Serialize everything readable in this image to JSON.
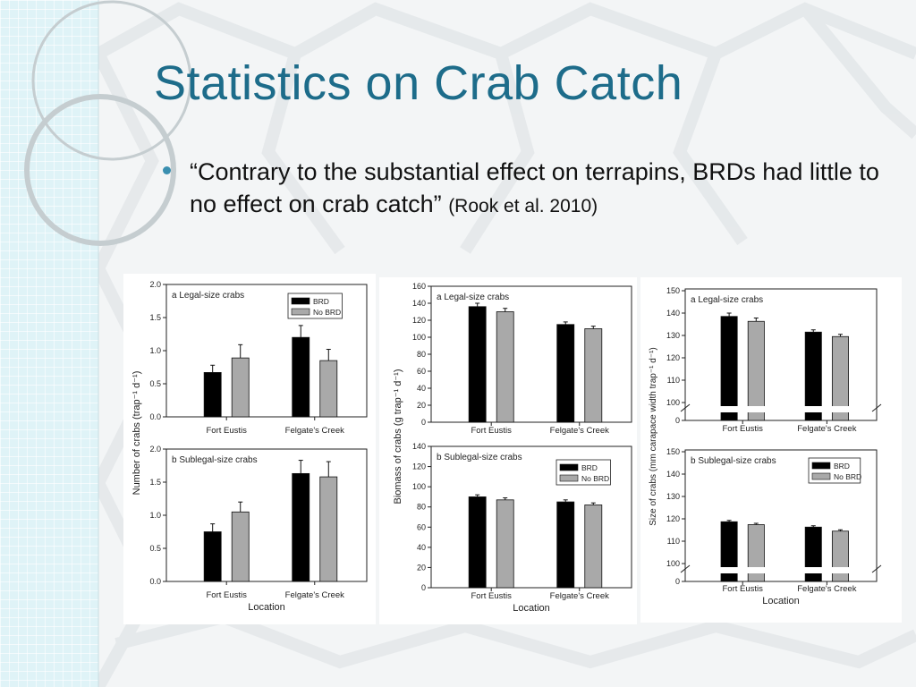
{
  "slide": {
    "title": "Statistics on Crab Catch",
    "bullet": "“Contrary to the substantial effect on terrapins, BRDs had little to no effect on crab catch”",
    "citation": "(Rook et al. 2010)"
  },
  "colors": {
    "title": "#1d6c8a",
    "brd": "#000000",
    "no_brd": "#a9a9a9"
  },
  "chart_data": [
    {
      "type": "bar",
      "panel_group": "Number of crabs",
      "title": "a Legal-size crabs",
      "categories": [
        "Fort Eustis",
        "Felgate's Creek"
      ],
      "series": [
        {
          "name": "BRD",
          "values": [
            0.67,
            1.2
          ],
          "errors": [
            0.11,
            0.18
          ]
        },
        {
          "name": "No BRD",
          "values": [
            0.89,
            0.85
          ],
          "errors": [
            0.2,
            0.17
          ]
        }
      ],
      "ylim": [
        0,
        2.0
      ],
      "yticks": [
        0.0,
        0.5,
        1.0,
        1.5,
        2.0
      ],
      "legend": [
        "BRD",
        "No BRD"
      ],
      "legend_position": "top-right"
    },
    {
      "type": "bar",
      "panel_group": "Number of crabs",
      "title": "b Sublegal-size crabs",
      "categories": [
        "Fort Eustis",
        "Felgate's Creek"
      ],
      "series": [
        {
          "name": "BRD",
          "values": [
            0.75,
            1.63
          ],
          "errors": [
            0.12,
            0.2
          ]
        },
        {
          "name": "No BRD",
          "values": [
            1.05,
            1.58
          ],
          "errors": [
            0.15,
            0.23
          ]
        }
      ],
      "ylim": [
        0,
        2.0
      ],
      "yticks": [
        0.0,
        0.5,
        1.0,
        1.5,
        2.0
      ],
      "xlabel": "Location",
      "ylabel": "Number of crabs (trap⁻¹ d⁻¹)"
    },
    {
      "type": "bar",
      "panel_group": "Biomass of crabs",
      "title": "a Legal-size crabs",
      "categories": [
        "Fort Eustis",
        "Felgate's Creek"
      ],
      "series": [
        {
          "name": "BRD",
          "values": [
            136,
            115
          ],
          "errors": [
            4,
            3
          ]
        },
        {
          "name": "No BRD",
          "values": [
            130,
            110
          ],
          "errors": [
            4,
            3
          ]
        }
      ],
      "ylim": [
        0,
        160
      ],
      "yticks": [
        0,
        20,
        40,
        60,
        80,
        100,
        120,
        140,
        160
      ]
    },
    {
      "type": "bar",
      "panel_group": "Biomass of crabs",
      "title": "b Sublegal-size crabs",
      "categories": [
        "Fort Eustis",
        "Felgate's Creek"
      ],
      "series": [
        {
          "name": "BRD",
          "values": [
            90,
            85
          ],
          "errors": [
            2,
            2
          ]
        },
        {
          "name": "No BRD",
          "values": [
            87,
            82
          ],
          "errors": [
            2,
            2
          ]
        }
      ],
      "ylim": [
        0,
        140
      ],
      "yticks": [
        0,
        20,
        40,
        60,
        80,
        100,
        120,
        140
      ],
      "legend": [
        "BRD",
        "No BRD"
      ],
      "legend_position": "top-right",
      "xlabel": "Location",
      "ylabel": "Biomass of crabs (g trap⁻¹ d⁻¹)"
    },
    {
      "type": "bar",
      "panel_group": "Size of crabs",
      "title": "a Legal-size crabs",
      "categories": [
        "Fort Eustis",
        "Felgate's Creek"
      ],
      "series": [
        {
          "name": "BRD",
          "values": [
            138.5,
            131.5
          ],
          "errors": [
            1.5,
            1.0
          ]
        },
        {
          "name": "No BRD",
          "values": [
            136.3,
            129.5
          ],
          "errors": [
            1.5,
            1.0
          ]
        }
      ],
      "ylim": [
        100,
        150
      ],
      "yticks": [
        0,
        100,
        110,
        120,
        130,
        140,
        150
      ],
      "axis_break": true
    },
    {
      "type": "bar",
      "panel_group": "Size of crabs",
      "title": "b Sublegal-size crabs",
      "categories": [
        "Fort Eustis",
        "Felgate's Creek"
      ],
      "series": [
        {
          "name": "BRD",
          "values": [
            118.7,
            116.3
          ],
          "errors": [
            0.6,
            0.6
          ]
        },
        {
          "name": "No BRD",
          "values": [
            117.4,
            114.5
          ],
          "errors": [
            0.6,
            0.6
          ]
        }
      ],
      "ylim": [
        100,
        150
      ],
      "yticks": [
        0,
        100,
        110,
        120,
        130,
        140,
        150
      ],
      "axis_break": true,
      "legend": [
        "BRD",
        "No BRD"
      ],
      "legend_position": "top-right",
      "xlabel": "Location",
      "ylabel": "Size of crabs (mm carapace width trap⁻¹ d⁻¹)"
    }
  ]
}
